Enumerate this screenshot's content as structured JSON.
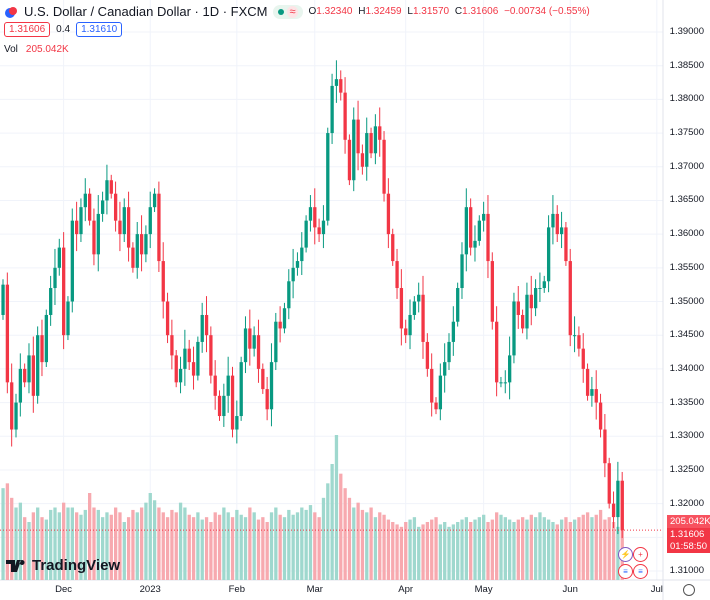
{
  "header": {
    "title": "U.S. Dollar / Canadian Dollar · 1D · FXCM",
    "status_symbol": "≈",
    "open_label": "O",
    "open": "1.32340",
    "high_label": "H",
    "high": "1.32459",
    "low_label": "L",
    "low": "1.31570",
    "close_label": "C",
    "close": "1.31606",
    "change": "−0.00734 (−0.55%)",
    "sell_price": "1.31606",
    "spread": "0.4",
    "buy_price": "1.31610",
    "vol_label": "Vol",
    "vol_value": "205.042K"
  },
  "price_tags": {
    "volume": "205.042K",
    "price": "1.31606",
    "countdown": "01:58:50"
  },
  "logo_text": "TradingView",
  "colors": {
    "up": "#089981",
    "down": "#f23645",
    "up_vol": "#9fd8ce",
    "down_vol": "#f7a9af"
  },
  "chart_data": {
    "type": "candlestick",
    "title": "U.S. Dollar / Canadian Dollar · 1D · FXCM",
    "y_ticks": [
      "1.39000",
      "1.38500",
      "1.38000",
      "1.37500",
      "1.37000",
      "1.36500",
      "1.36000",
      "1.35500",
      "1.35000",
      "1.34500",
      "1.34000",
      "1.33500",
      "1.33000",
      "1.32500",
      "1.32000",
      "1.31500",
      "1.31000"
    ],
    "ylim": [
      1.3085,
      1.3925
    ],
    "x_ticks": [
      {
        "label": "Dec",
        "index": 14
      },
      {
        "label": "2023",
        "index": 34
      },
      {
        "label": "Feb",
        "index": 54
      },
      {
        "label": "Mar",
        "index": 72
      },
      {
        "label": "Apr",
        "index": 93
      },
      {
        "label": "May",
        "index": 111
      },
      {
        "label": "Jun",
        "index": 131
      },
      {
        "label": "Jul",
        "index": 151
      }
    ],
    "first_open": 1.348,
    "closes": [
      1.3525,
      1.338,
      1.331,
      1.335,
      1.34,
      1.338,
      1.342,
      1.336,
      1.345,
      1.341,
      1.348,
      1.352,
      1.355,
      1.358,
      1.345,
      1.35,
      1.362,
      1.36,
      1.364,
      1.366,
      1.362,
      1.357,
      1.363,
      1.365,
      1.368,
      1.366,
      1.362,
      1.36,
      1.364,
      1.358,
      1.355,
      1.36,
      1.357,
      1.36,
      1.364,
      1.366,
      1.356,
      1.35,
      1.345,
      1.342,
      1.338,
      1.34,
      1.343,
      1.341,
      1.339,
      1.344,
      1.348,
      1.345,
      1.339,
      1.336,
      1.333,
      1.336,
      1.339,
      1.331,
      1.333,
      1.341,
      1.346,
      1.343,
      1.345,
      1.34,
      1.337,
      1.334,
      1.341,
      1.347,
      1.346,
      1.349,
      1.353,
      1.355,
      1.356,
      1.358,
      1.362,
      1.364,
      1.361,
      1.36,
      1.362,
      1.375,
      1.382,
      1.383,
      1.381,
      1.374,
      1.368,
      1.377,
      1.372,
      1.37,
      1.375,
      1.372,
      1.376,
      1.374,
      1.366,
      1.36,
      1.356,
      1.352,
      1.346,
      1.345,
      1.348,
      1.35,
      1.351,
      1.344,
      1.34,
      1.335,
      1.334,
      1.339,
      1.341,
      1.344,
      1.347,
      1.352,
      1.357,
      1.364,
      1.358,
      1.359,
      1.362,
      1.363,
      1.356,
      1.347,
      1.338,
      1.338,
      1.338,
      1.342,
      1.35,
      1.348,
      1.346,
      1.351,
      1.349,
      1.352,
      1.352,
      1.353,
      1.361,
      1.363,
      1.36,
      1.361,
      1.356,
      1.345,
      1.345,
      1.343,
      1.34,
      1.336,
      1.337,
      1.335,
      1.331,
      1.326,
      1.32,
      1.318,
      1.3234,
      1.31606
    ],
    "volumes_k": [
      190,
      200,
      170,
      150,
      160,
      130,
      120,
      140,
      150,
      130,
      125,
      145,
      150,
      140,
      160,
      150,
      150,
      140,
      135,
      145,
      180,
      150,
      145,
      130,
      140,
      135,
      150,
      140,
      120,
      130,
      145,
      140,
      150,
      160,
      180,
      165,
      150,
      140,
      130,
      145,
      140,
      160,
      150,
      135,
      130,
      140,
      125,
      130,
      120,
      140,
      135,
      150,
      140,
      130,
      145,
      135,
      130,
      150,
      140,
      125,
      130,
      120,
      140,
      150,
      135,
      130,
      145,
      135,
      140,
      150,
      145,
      155,
      140,
      130,
      170,
      200,
      240,
      300,
      220,
      190,
      170,
      150,
      160,
      145,
      140,
      150,
      130,
      140,
      135,
      125,
      120,
      115,
      110,
      120,
      125,
      130,
      110,
      115,
      120,
      125,
      130,
      115,
      120,
      110,
      115,
      120,
      125,
      130,
      120,
      125,
      130,
      135,
      120,
      125,
      140,
      135,
      130,
      125,
      120,
      125,
      130,
      125,
      135,
      130,
      140,
      130,
      125,
      120,
      115,
      125,
      130,
      120,
      125,
      130,
      135,
      140,
      130,
      135,
      145,
      125,
      130,
      120,
      110,
      205.042
    ]
  }
}
